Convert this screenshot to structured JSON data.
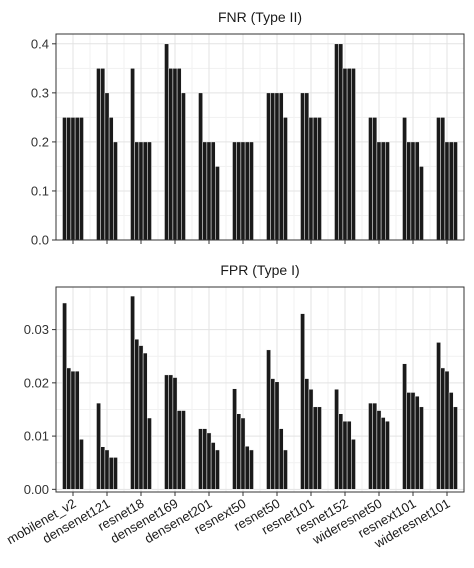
{
  "chart_data": [
    {
      "type": "bar",
      "title": "FNR (Type II)",
      "categories": [
        "mobilenet_v2",
        "densenet121",
        "resnet18",
        "densenet169",
        "densenet201",
        "resnext50",
        "resnet50",
        "resnet101",
        "resnet152",
        "wideresnet50",
        "resnext101",
        "wideresnet101"
      ],
      "values": [
        [
          0.25,
          0.25,
          0.25,
          0.25,
          0.25
        ],
        [
          0.35,
          0.35,
          0.3,
          0.25,
          0.2
        ],
        [
          0.35,
          0.2,
          0.2,
          0.2,
          0.2
        ],
        [
          0.4,
          0.35,
          0.35,
          0.35,
          0.3
        ],
        [
          0.3,
          0.2,
          0.2,
          0.2,
          0.15
        ],
        [
          0.2,
          0.2,
          0.2,
          0.2,
          0.2
        ],
        [
          0.3,
          0.3,
          0.3,
          0.3,
          0.25
        ],
        [
          0.3,
          0.3,
          0.25,
          0.25,
          0.25
        ],
        [
          0.4,
          0.4,
          0.35,
          0.35,
          0.35
        ],
        [
          0.25,
          0.25,
          0.2,
          0.2,
          0.2
        ],
        [
          0.25,
          0.2,
          0.2,
          0.2,
          0.15
        ],
        [
          0.25,
          0.25,
          0.2,
          0.2,
          0.2
        ]
      ],
      "yticks": [
        "0.0",
        "0.1",
        "0.2",
        "0.3",
        "0.4"
      ],
      "ylim": [
        0,
        0.42
      ],
      "grid": true
    },
    {
      "type": "bar",
      "title": "FPR (Type I)",
      "categories": [
        "mobilenet_v2",
        "densenet121",
        "resnet18",
        "densenet169",
        "densenet201",
        "resnext50",
        "resnet50",
        "resnet101",
        "resnet152",
        "wideresnet50",
        "resnext101",
        "wideresnet101"
      ],
      "values": [
        [
          0.035,
          0.0228,
          0.0222,
          0.0222,
          0.0094
        ],
        [
          0.0162,
          0.008,
          0.0074,
          0.006,
          0.006
        ],
        [
          0.0363,
          0.0282,
          0.027,
          0.0256,
          0.0134
        ],
        [
          0.0215,
          0.0215,
          0.021,
          0.0148,
          0.0148
        ],
        [
          0.0114,
          0.0114,
          0.0106,
          0.0088,
          0.0074
        ],
        [
          0.0189,
          0.0142,
          0.0134,
          0.0081,
          0.0074
        ],
        [
          0.0262,
          0.0208,
          0.0202,
          0.0114,
          0.0074
        ],
        [
          0.033,
          0.0208,
          0.0188,
          0.0155,
          0.0155
        ],
        [
          0.0188,
          0.0142,
          0.0128,
          0.0128,
          0.0094
        ],
        [
          0.0162,
          0.0162,
          0.0148,
          0.0135,
          0.0128
        ],
        [
          0.0236,
          0.0182,
          0.0182,
          0.0175,
          0.0155
        ],
        [
          0.0276,
          0.0228,
          0.0222,
          0.0182,
          0.0155
        ]
      ],
      "yticks": [
        "0.00",
        "0.01",
        "0.02",
        "0.03"
      ],
      "ylim": [
        -0.0005,
        0.038
      ],
      "grid": true
    }
  ]
}
